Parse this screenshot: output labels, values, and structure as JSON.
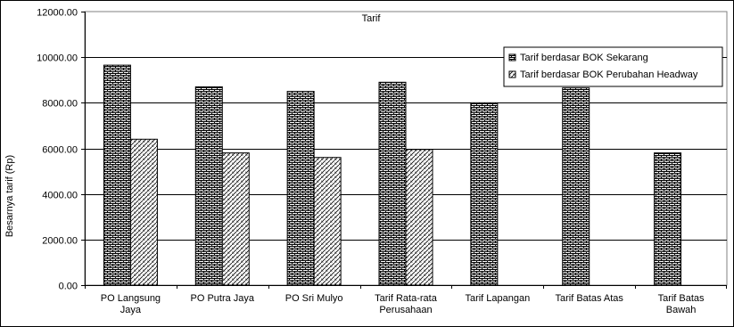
{
  "chart_data": {
    "type": "bar",
    "title": "Tarif",
    "xlabel": "",
    "ylabel": "Besarnya tarif (Rp)",
    "ylim": [
      0,
      12000
    ],
    "yticks": [
      "0.00",
      "2000.00",
      "4000.00",
      "6000.00",
      "8000.00",
      "10000.00",
      "12000.00"
    ],
    "grid": true,
    "legend_position": "top-right",
    "categories": [
      [
        "PO Langsung",
        "Jaya"
      ],
      [
        "PO Putra Jaya"
      ],
      [
        "PO Sri Mulyo"
      ],
      [
        "Tarif Rata-rata",
        "Perusahaan"
      ],
      [
        "Tarif Lapangan"
      ],
      [
        "Tarif Batas Atas"
      ],
      [
        "Tarif Batas",
        "Bawah"
      ]
    ],
    "series": [
      {
        "name": "Tarif berdasar BOK Sekarang",
        "pattern": "brick",
        "values": [
          9650,
          8700,
          8500,
          8900,
          8000,
          8650,
          5800
        ]
      },
      {
        "name": "Tarif berdasar BOK Perubahan Headway",
        "pattern": "diagonal",
        "values": [
          6400,
          5800,
          5600,
          5950,
          null,
          null,
          null
        ]
      }
    ]
  }
}
